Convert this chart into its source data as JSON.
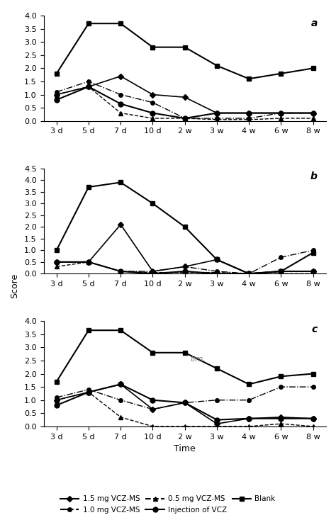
{
  "x_labels": [
    "3 d",
    "5 d",
    "7 d",
    "10 d",
    "2 w",
    "3 w",
    "4 w",
    "6 w",
    "8 w"
  ],
  "panel_a": {
    "title": "a",
    "ylim": [
      0,
      4.0
    ],
    "yticks": [
      0,
      0.5,
      1.0,
      1.5,
      2.0,
      2.5,
      3.0,
      3.5,
      4.0
    ],
    "series": {
      "1.5mg": [
        1.0,
        1.3,
        1.7,
        1.0,
        0.9,
        0.3,
        0.3,
        0.3,
        0.3
      ],
      "1.0mg": [
        1.1,
        1.5,
        1.0,
        0.7,
        0.1,
        0.1,
        0.1,
        0.3,
        0.3
      ],
      "0.5mg": [
        1.0,
        1.3,
        0.3,
        0.1,
        0.1,
        0.05,
        0.05,
        0.1,
        0.1
      ],
      "injection": [
        0.8,
        1.3,
        0.65,
        0.3,
        0.1,
        0.3,
        0.3,
        0.3,
        0.3
      ],
      "blank": [
        1.8,
        3.7,
        3.7,
        2.8,
        2.8,
        2.1,
        1.6,
        1.8,
        2.0
      ]
    }
  },
  "panel_b": {
    "title": "b",
    "ylim": [
      0,
      4.5
    ],
    "yticks": [
      0,
      0.5,
      1.0,
      1.5,
      2.0,
      2.5,
      3.0,
      3.5,
      4.0,
      4.5
    ],
    "series": {
      "1.5mg": [
        0.5,
        0.5,
        2.1,
        0.1,
        0.3,
        0.6,
        0.0,
        0.1,
        0.1
      ],
      "1.0mg": [
        0.5,
        0.5,
        0.1,
        0.1,
        0.3,
        0.1,
        0.0,
        0.7,
        1.0
      ],
      "0.5mg": [
        0.3,
        0.5,
        0.1,
        0.05,
        0.05,
        0.05,
        0.0,
        0.0,
        0.0
      ],
      "injection": [
        0.5,
        0.5,
        0.1,
        0.0,
        0.1,
        0.0,
        0.0,
        0.1,
        0.1
      ],
      "blank": [
        1.0,
        3.7,
        3.9,
        3.0,
        2.0,
        0.6,
        0.0,
        0.1,
        0.9
      ]
    }
  },
  "panel_c": {
    "title": "c",
    "ylim": [
      0,
      4.0
    ],
    "yticks": [
      0,
      0.5,
      1.0,
      1.5,
      2.0,
      2.5,
      3.0,
      3.5,
      4.0
    ],
    "series": {
      "1.5mg": [
        1.0,
        1.3,
        1.6,
        0.65,
        0.9,
        0.1,
        0.3,
        0.35,
        0.3
      ],
      "1.0mg": [
        1.1,
        1.4,
        1.0,
        0.65,
        0.9,
        1.0,
        1.0,
        1.5,
        1.5
      ],
      "0.5mg": [
        1.0,
        1.3,
        0.35,
        0.0,
        0.0,
        0.0,
        0.0,
        0.1,
        0.0
      ],
      "injection": [
        0.8,
        1.3,
        1.6,
        1.0,
        0.9,
        0.25,
        0.3,
        0.3,
        0.3
      ],
      "blank": [
        1.7,
        3.65,
        3.65,
        2.8,
        2.8,
        2.2,
        1.6,
        1.9,
        2.0
      ]
    }
  },
  "legend": {
    "1.5mg": "1.5 mg VCZ-MS",
    "1.0mg": "1.0 mg VCZ-MS",
    "0.5mg": "0.5 mg VCZ-MS",
    "injection": "Injection of VCZ",
    "blank": "Blank"
  },
  "ylabel": "Score",
  "xlabel": "Time",
  "annotation_c": "tim."
}
